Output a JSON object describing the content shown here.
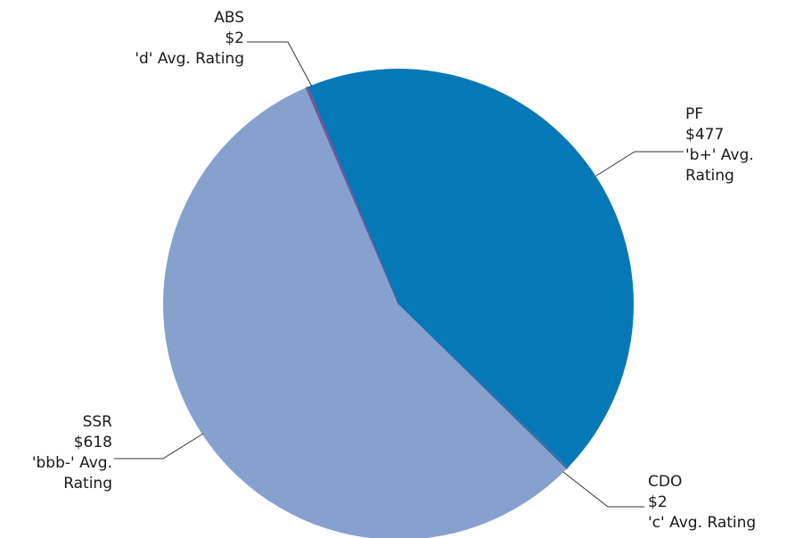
{
  "chart_data": {
    "type": "pie",
    "title": "",
    "unit": "$",
    "slices": [
      {
        "name": "PF",
        "value": 477,
        "value_label": "$477",
        "rating": "'b+' Avg. Rating",
        "label_lines": [
          "PF",
          "$477",
          "'b+' Avg.",
          "Rating"
        ],
        "color": "#0578b7"
      },
      {
        "name": "CDO",
        "value": 2,
        "value_label": "$2",
        "rating": "'c' Avg. Rating",
        "label_lines": [
          "CDO",
          "$2",
          "'c' Avg. Rating"
        ],
        "color": "#3a6ea8"
      },
      {
        "name": "SSR",
        "value": 618,
        "value_label": "$618",
        "rating": "'bbb-' Avg. Rating",
        "label_lines": [
          "SSR",
          "$618",
          "'bbb-' Avg.",
          "Rating"
        ],
        "color": "#87a1ce"
      },
      {
        "name": "ABS",
        "value": 2,
        "value_label": "$2",
        "rating": "'d' Avg. Rating",
        "label_lines": [
          "ABS",
          "$2",
          "'d' Avg. Rating"
        ],
        "color": "#6a5a9a"
      }
    ],
    "legend": "none"
  }
}
